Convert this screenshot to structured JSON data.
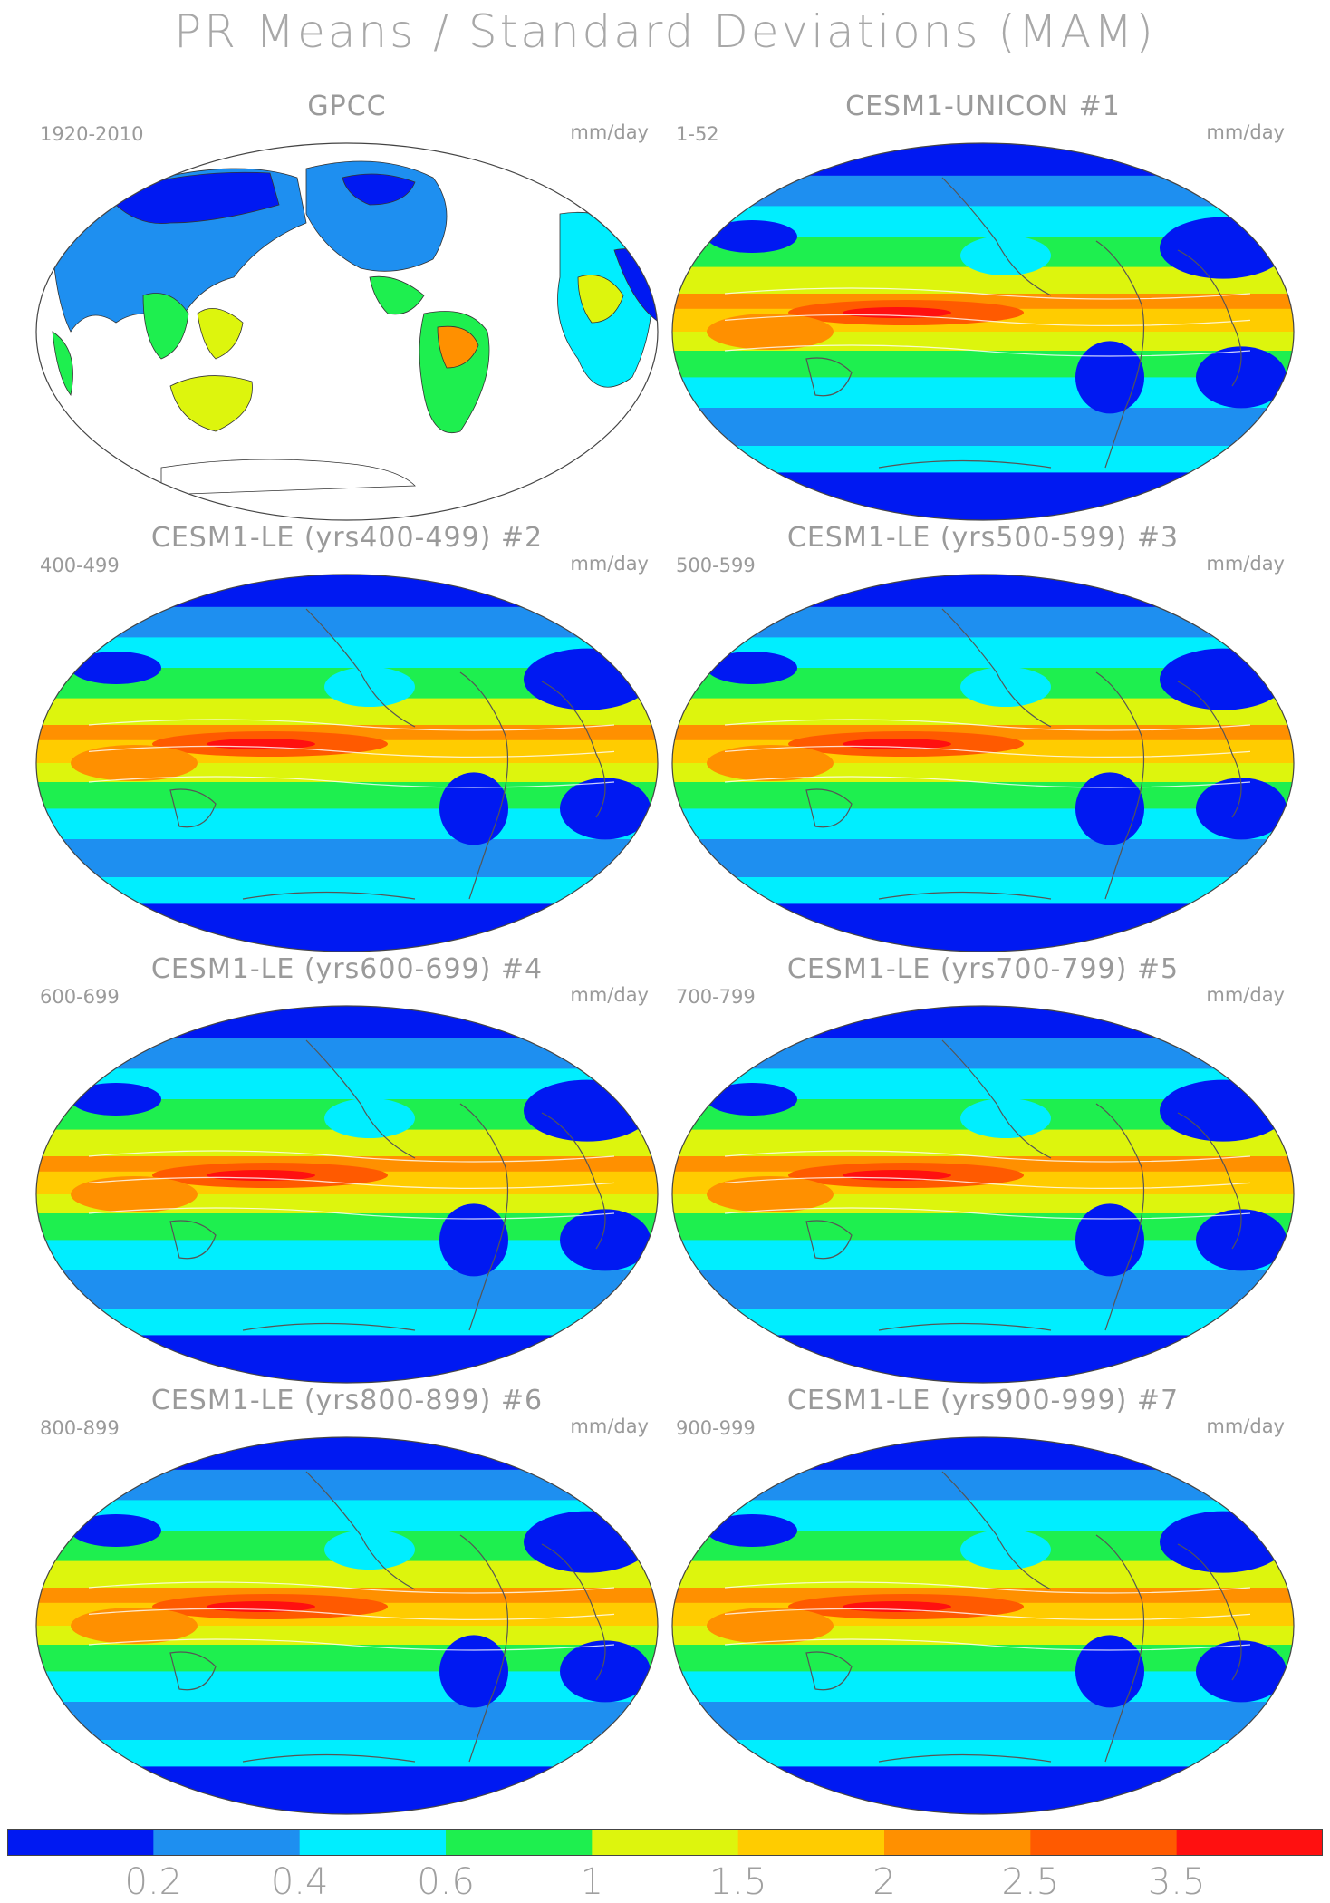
{
  "title": "PR Means / Standard Deviations (MAM)",
  "units": "mm/day",
  "panels": [
    {
      "id": "gpcc",
      "title": "GPCC",
      "years": "1920-2010",
      "number": "",
      "type": "obs"
    },
    {
      "id": "p1",
      "title": "CESM1-UNICON",
      "years": "1-52",
      "number": "#1",
      "type": "model"
    },
    {
      "id": "p2",
      "title": "CESM1-LE (yrs400-499)",
      "years": "400-499",
      "number": "#2",
      "type": "model"
    },
    {
      "id": "p3",
      "title": "CESM1-LE (yrs500-599)",
      "years": "500-599",
      "number": "#3",
      "type": "model"
    },
    {
      "id": "p4",
      "title": "CESM1-LE (yrs600-699)",
      "years": "600-699",
      "number": "#4",
      "type": "model"
    },
    {
      "id": "p5",
      "title": "CESM1-LE (yrs700-799)",
      "years": "700-799",
      "number": "#5",
      "type": "model"
    },
    {
      "id": "p6",
      "title": "CESM1-LE (yrs800-899)",
      "years": "800-899",
      "number": "#6",
      "type": "model"
    },
    {
      "id": "p7",
      "title": "CESM1-LE (yrs900-999)",
      "years": "900-999",
      "number": "#7",
      "type": "model"
    }
  ],
  "colorbar": {
    "colors": [
      "#0019f2",
      "#1e8ff0",
      "#00eeff",
      "#1eef4f",
      "#ddf50d",
      "#ffcc00",
      "#ff9000",
      "#ff5a00",
      "#ff1010"
    ],
    "labels": [
      "0.2",
      "0.4",
      "0.6",
      "1",
      "1.5",
      "2",
      "2.5",
      "3.5"
    ]
  }
}
